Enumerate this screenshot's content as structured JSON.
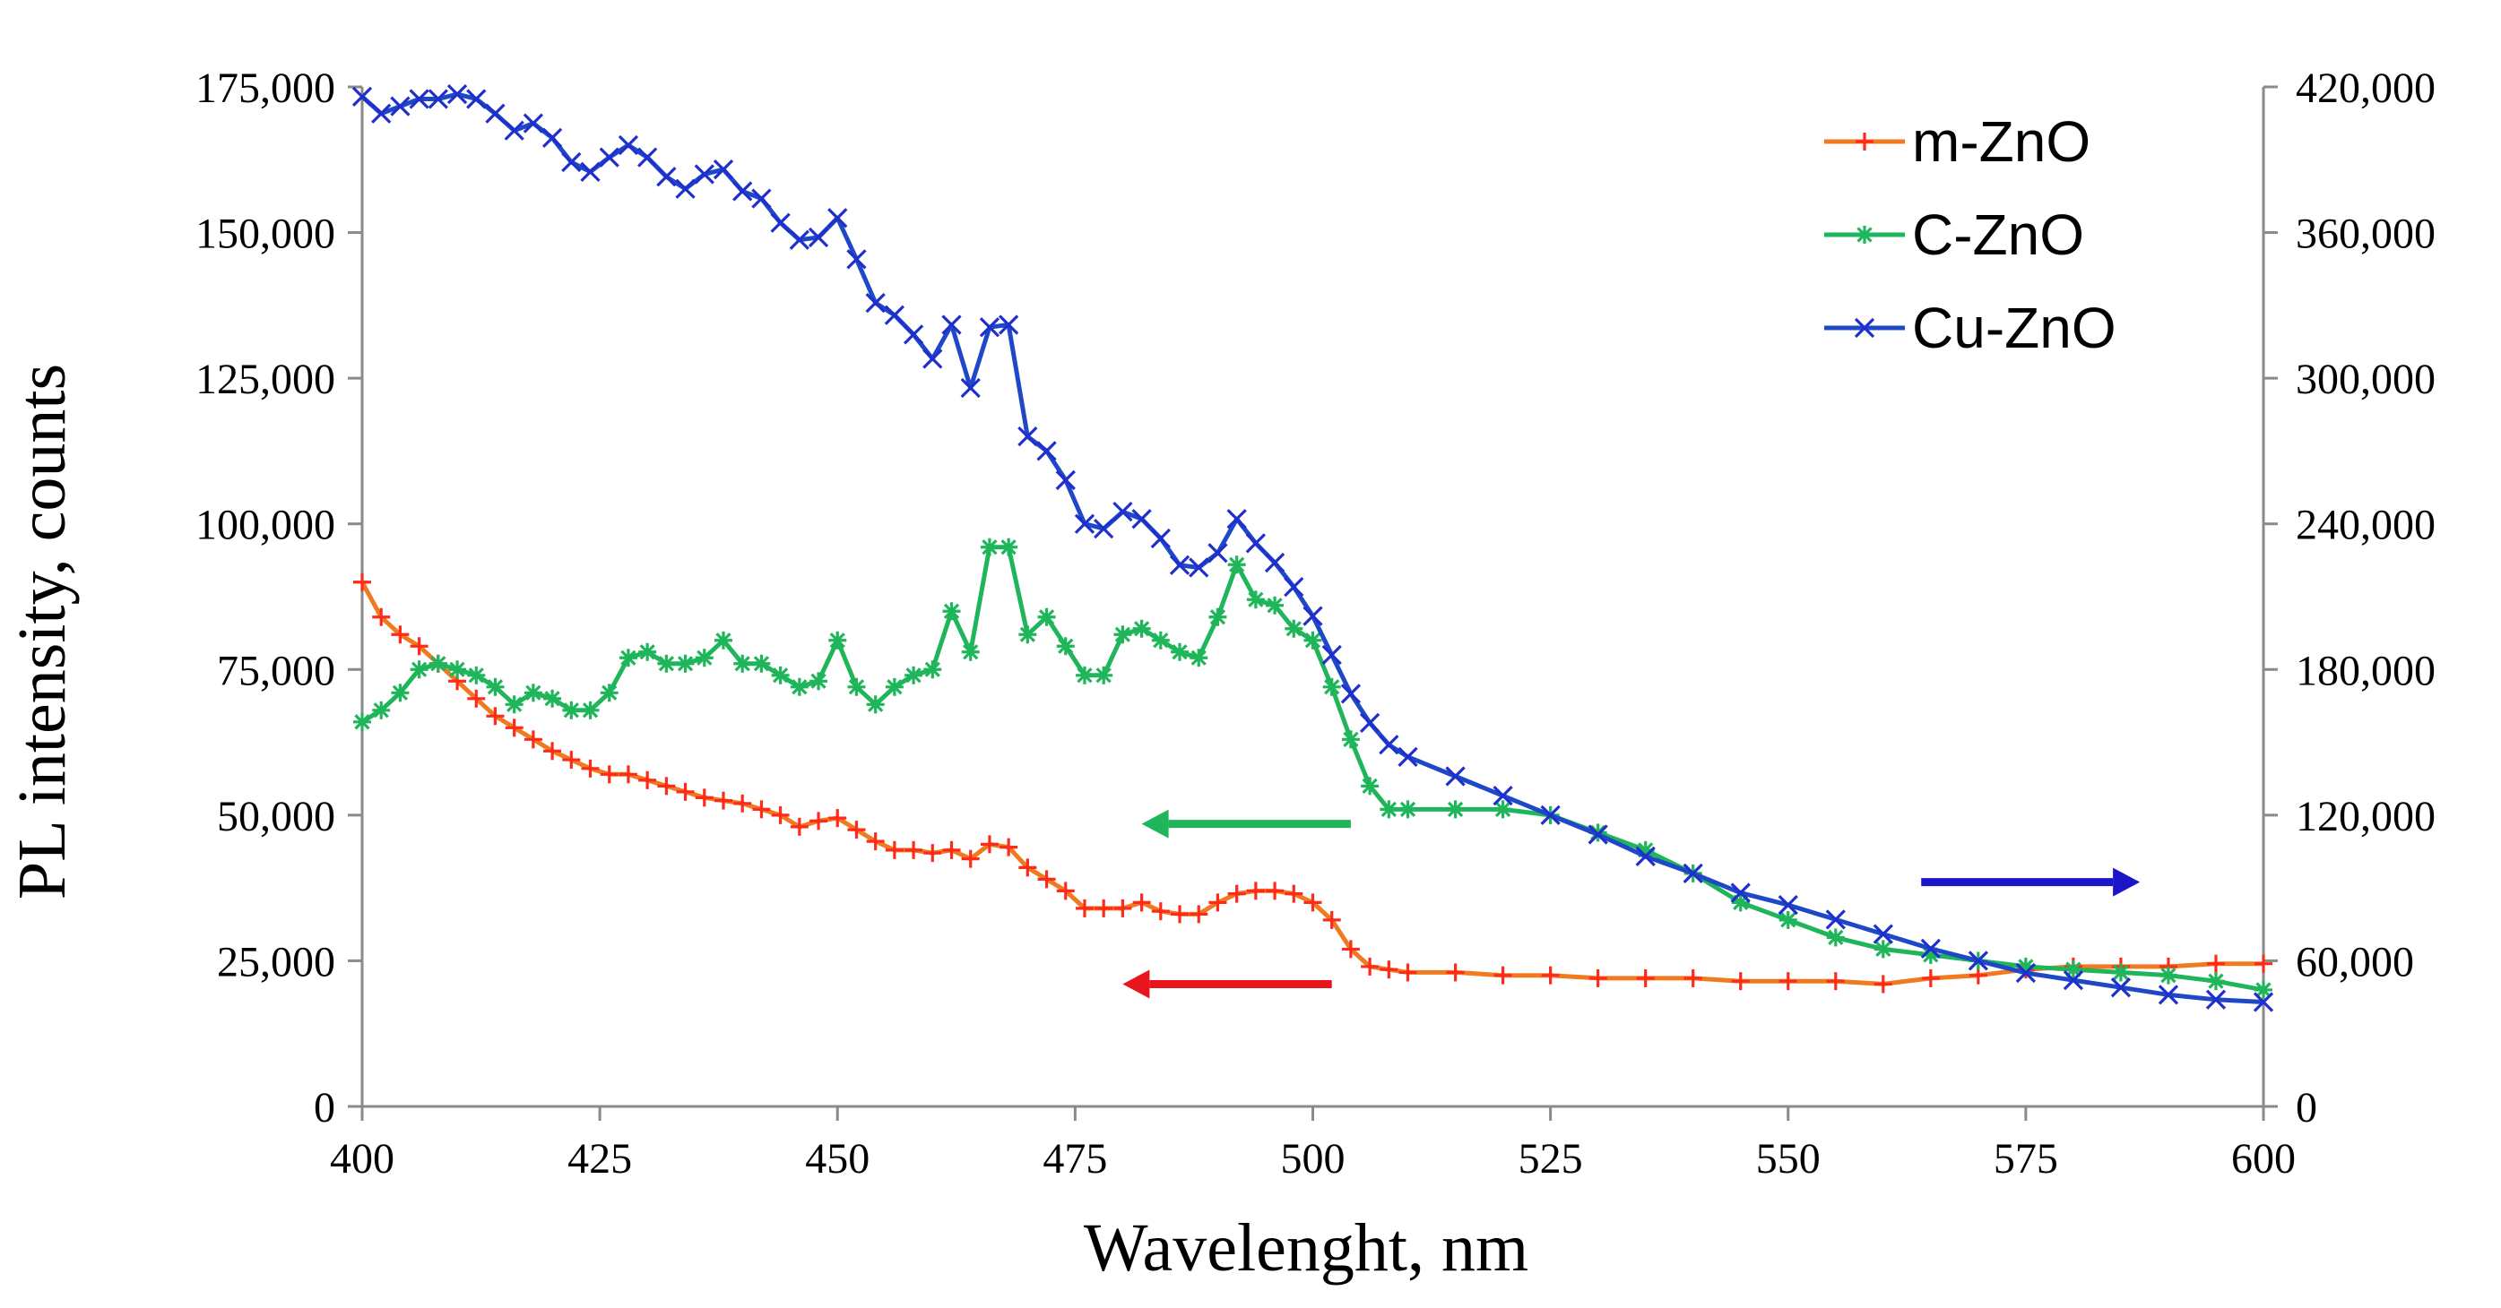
{
  "chart_data": {
    "type": "line",
    "title": "",
    "xlabel": "Wavelenght, nm",
    "ylabel": "PL intensity, counts",
    "xlim": [
      400,
      600
    ],
    "ylim_left": [
      0,
      175000
    ],
    "ylim_right": [
      0,
      420000
    ],
    "x_ticks": [
      "400",
      "425",
      "450",
      "475",
      "500",
      "525",
      "550",
      "575",
      "600"
    ],
    "y_left_ticks": [
      "0",
      "25,000",
      "50,000",
      "75,000",
      "100,000",
      "125,000",
      "150,000",
      "175,000"
    ],
    "y_right_ticks": [
      "0",
      "60,000",
      "120,000",
      "180,000",
      "240,000",
      "300,000",
      "360,000",
      "420,000"
    ],
    "x_tick_values": [
      400,
      425,
      450,
      475,
      500,
      525,
      550,
      575,
      600
    ],
    "y_left_tick_values": [
      0,
      25000,
      50000,
      75000,
      100000,
      125000,
      150000,
      175000
    ],
    "y_right_tick_values": [
      0,
      60000,
      120000,
      180000,
      240000,
      300000,
      360000,
      420000
    ],
    "grid": false,
    "legend_position": "top-right",
    "series": [
      {
        "name": "m-ZnO",
        "axis": "left",
        "color": "#ff2a1a",
        "line_color": "#f07a1f",
        "marker": "plus",
        "x": [
          400,
          402,
          404,
          406,
          408,
          410,
          412,
          414,
          416,
          418,
          420,
          422,
          424,
          426,
          428,
          430,
          432,
          434,
          436,
          438,
          440,
          442,
          444,
          446,
          448,
          450,
          452,
          454,
          456,
          458,
          460,
          462,
          464,
          466,
          468,
          470,
          472,
          474,
          476,
          478,
          480,
          482,
          484,
          486,
          488,
          490,
          492,
          494,
          496,
          498,
          500,
          502,
          504,
          506,
          508,
          510,
          515,
          520,
          525,
          530,
          535,
          540,
          545,
          550,
          555,
          560,
          565,
          570,
          575,
          580,
          585,
          590,
          595,
          600
        ],
        "values": [
          90000,
          84000,
          81000,
          79000,
          76000,
          73000,
          70000,
          67000,
          65000,
          63000,
          61000,
          59500,
          58000,
          57000,
          57000,
          56000,
          55000,
          54000,
          53000,
          52500,
          52000,
          51000,
          50000,
          48000,
          49000,
          49500,
          47500,
          45500,
          44000,
          44000,
          43500,
          44000,
          42500,
          45000,
          44500,
          41000,
          39000,
          37000,
          34000,
          34000,
          34000,
          35000,
          33500,
          33000,
          33000,
          35000,
          36500,
          37000,
          37000,
          36500,
          35000,
          32000,
          27000,
          24000,
          23500,
          23000,
          23000,
          22500,
          22500,
          22000,
          22000,
          22000,
          21500,
          21500,
          21500,
          21000,
          22000,
          22500,
          23500,
          24000,
          24000,
          24000,
          24500,
          24500
        ]
      },
      {
        "name": "C-ZnO",
        "axis": "left",
        "color": "#1fb55a",
        "line_color": "#1fb55a",
        "marker": "asterisk",
        "x": [
          400,
          402,
          404,
          406,
          408,
          410,
          412,
          414,
          416,
          418,
          420,
          422,
          424,
          426,
          428,
          430,
          432,
          434,
          436,
          438,
          440,
          442,
          444,
          446,
          448,
          450,
          452,
          454,
          456,
          458,
          460,
          462,
          464,
          466,
          468,
          470,
          472,
          474,
          476,
          478,
          480,
          482,
          484,
          486,
          488,
          490,
          492,
          494,
          496,
          498,
          500,
          502,
          504,
          506,
          508,
          510,
          515,
          520,
          525,
          530,
          535,
          540,
          545,
          550,
          555,
          560,
          565,
          570,
          575,
          580,
          585,
          590,
          595,
          600
        ],
        "values": [
          66000,
          68000,
          71000,
          75000,
          76000,
          75000,
          74000,
          72000,
          69000,
          71000,
          70000,
          68000,
          68000,
          71000,
          77000,
          78000,
          76000,
          76000,
          77000,
          80000,
          76000,
          76000,
          74000,
          72000,
          73000,
          80000,
          72000,
          69000,
          72000,
          74000,
          75000,
          85000,
          78000,
          96000,
          96000,
          81000,
          84000,
          79000,
          74000,
          74000,
          81000,
          82000,
          80000,
          78000,
          77000,
          84000,
          93000,
          87000,
          86000,
          82000,
          80000,
          72000,
          63000,
          55000,
          51000,
          51000,
          51000,
          51000,
          50000,
          47000,
          44000,
          40000,
          35000,
          32000,
          29000,
          27000,
          26000,
          25000,
          24000,
          23500,
          23000,
          22500,
          21500,
          20000
        ]
      },
      {
        "name": "Cu-ZnO",
        "axis": "right",
        "color": "#1f2fcc",
        "line_color": "#1f48c8",
        "marker": "cross",
        "x": [
          400,
          402,
          404,
          406,
          408,
          410,
          412,
          414,
          416,
          418,
          420,
          422,
          424,
          426,
          428,
          430,
          432,
          434,
          436,
          438,
          440,
          442,
          444,
          446,
          448,
          450,
          452,
          454,
          456,
          458,
          460,
          462,
          464,
          466,
          468,
          470,
          472,
          474,
          476,
          478,
          480,
          482,
          484,
          486,
          488,
          490,
          492,
          494,
          496,
          498,
          500,
          502,
          504,
          506,
          508,
          510,
          515,
          520,
          525,
          530,
          535,
          540,
          545,
          550,
          555,
          560,
          565,
          570,
          575,
          580,
          585,
          590,
          595,
          600
        ],
        "values": [
          416000,
          409000,
          412000,
          415000,
          415000,
          417000,
          415000,
          409000,
          402000,
          405000,
          399000,
          389000,
          385000,
          391000,
          396000,
          391000,
          383000,
          378000,
          384000,
          386000,
          377000,
          374000,
          364000,
          357000,
          358000,
          366000,
          349000,
          331000,
          326000,
          318000,
          308000,
          322000,
          296000,
          321000,
          322000,
          276000,
          270000,
          258000,
          240000,
          238000,
          245000,
          242000,
          234000,
          223000,
          222000,
          228000,
          242000,
          232000,
          224000,
          214000,
          202000,
          186000,
          170000,
          158000,
          149000,
          144000,
          136000,
          128000,
          120000,
          112000,
          103000,
          96000,
          88000,
          83000,
          77000,
          71000,
          65000,
          60000,
          55000,
          52000,
          49000,
          46000,
          44000,
          43000
        ]
      }
    ],
    "legend": [
      {
        "label": "m-ZnO",
        "color": "#ff2a1a",
        "line_color": "#f07a1f",
        "marker": "plus"
      },
      {
        "label": "C-ZnO",
        "color": "#1fb55a",
        "line_color": "#1fb55a",
        "marker": "asterisk"
      },
      {
        "label": "Cu-ZnO",
        "color": "#1f2fcc",
        "line_color": "#1f48c8",
        "marker": "cross"
      }
    ],
    "annotations": [
      {
        "type": "arrow",
        "direction": "left",
        "series": "C-ZnO",
        "color": "#1fb55a",
        "x_from": 504,
        "x_to": 482,
        "y": 48500,
        "axis": "left"
      },
      {
        "type": "arrow",
        "direction": "left",
        "series": "m-ZnO",
        "color": "#e8161c",
        "x_from": 502,
        "x_to": 480,
        "y": 21000,
        "axis": "left"
      },
      {
        "type": "arrow",
        "direction": "right",
        "series": "Cu-ZnO",
        "color": "#1a16c8",
        "x_from": 564,
        "x_to": 587,
        "y": 38500,
        "axis": "left"
      }
    ]
  }
}
